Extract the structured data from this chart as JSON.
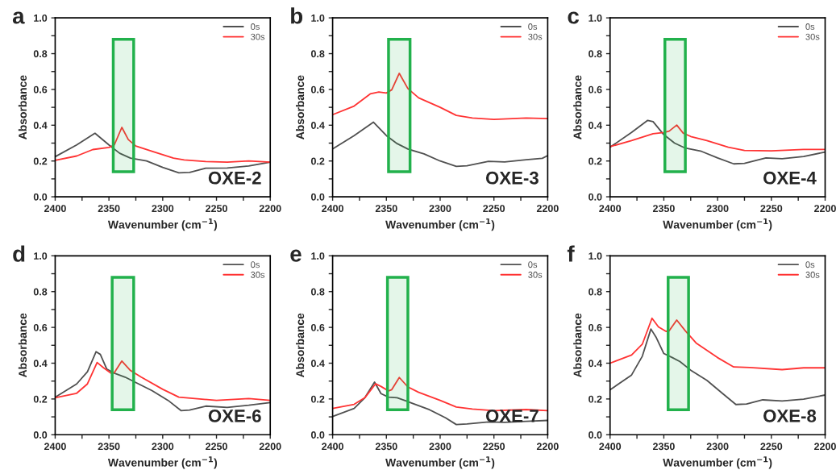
{
  "chart_data": [
    {
      "type": "line",
      "title": "a",
      "xlabel": "Wavenumber (cm$^{−1}$)",
      "ylabel": "Absorbance",
      "annotations": [
        "OXE-2"
      ],
      "xlim": [
        2400,
        2200
      ],
      "ylim": [
        0,
        1
      ],
      "xticks": [
        2400,
        {
          "value": 2375,
          "label": null
        },
        2350,
        {
          "value": 2325,
          "label": null
        },
        2300,
        {
          "value": 2275,
          "label": null
        },
        2250,
        {
          "value": 2225,
          "label": null
        },
        2200
      ],
      "yticks": [
        {
          "value": 0,
          "label": "0.0"
        },
        {
          "value": 0.1,
          "label": null
        },
        0.2,
        {
          "value": 0.3,
          "label": null
        },
        0.4,
        {
          "value": 0.5,
          "label": null
        },
        0.6,
        {
          "value": 0.7,
          "label": null
        },
        0.8,
        {
          "value": 0.9,
          "label": null
        },
        {
          "value": 1,
          "label": "1.0"
        }
      ],
      "legend": "top right",
      "grid": false,
      "bands": [
        {
          "axis": "x",
          "from": 2346,
          "to": 2327,
          "color": "#22b14c"
        }
      ],
      "series": [
        {
          "name": "0s",
          "color": "#505050",
          "x": [
            2400,
            2380,
            2363,
            2350,
            2340,
            2330,
            2315,
            2300,
            2285,
            2275,
            2260,
            2240,
            2220,
            2200
          ],
          "values": [
            0.224,
            0.29,
            0.355,
            0.29,
            0.243,
            0.216,
            0.2,
            0.164,
            0.134,
            0.136,
            0.16,
            0.161,
            0.172,
            0.194
          ]
        },
        {
          "name": "30s",
          "color": "#ff3333",
          "x": [
            2400,
            2380,
            2365,
            2350,
            2345,
            2338,
            2332,
            2325,
            2310,
            2290,
            2280,
            2260,
            2240,
            2220,
            2200
          ],
          "values": [
            0.204,
            0.228,
            0.264,
            0.276,
            0.29,
            0.388,
            0.32,
            0.284,
            0.254,
            0.216,
            0.206,
            0.197,
            0.194,
            0.2,
            0.194
          ]
        }
      ]
    },
    {
      "type": "line",
      "title": "b",
      "xlabel": "Wavenumber (cm$^{−1}$)",
      "ylabel": "Absorbance",
      "annotations": [
        "OXE-3"
      ],
      "xlim": [
        2400,
        2200
      ],
      "ylim": [
        0,
        1
      ],
      "xticks": [
        2400,
        {
          "value": 2375,
          "label": null
        },
        2350,
        {
          "value": 2325,
          "label": null
        },
        2300,
        {
          "value": 2275,
          "label": null
        },
        2250,
        {
          "value": 2225,
          "label": null
        },
        2200
      ],
      "yticks": [
        {
          "value": 0,
          "label": "0.0"
        },
        {
          "value": 0.1,
          "label": null
        },
        0.2,
        {
          "value": 0.3,
          "label": null
        },
        0.4,
        {
          "value": 0.5,
          "label": null
        },
        0.6,
        {
          "value": 0.7,
          "label": null
        },
        0.8,
        {
          "value": 0.9,
          "label": null
        },
        {
          "value": 1,
          "label": "1.0"
        }
      ],
      "legend": "top right",
      "grid": false,
      "bands": [
        {
          "axis": "x",
          "from": 2348,
          "to": 2328,
          "color": "#22b14c"
        }
      ],
      "series": [
        {
          "name": "0s",
          "color": "#505050",
          "x": [
            2400,
            2380,
            2362,
            2350,
            2340,
            2330,
            2315,
            2300,
            2285,
            2275,
            2255,
            2240,
            2220,
            2205,
            2200
          ],
          "values": [
            0.267,
            0.342,
            0.417,
            0.342,
            0.297,
            0.267,
            0.24,
            0.2,
            0.17,
            0.173,
            0.198,
            0.195,
            0.207,
            0.215,
            0.23
          ]
        },
        {
          "name": "30s",
          "color": "#ff3333",
          "x": [
            2400,
            2380,
            2365,
            2357,
            2350,
            2345,
            2338,
            2330,
            2320,
            2300,
            2285,
            2270,
            2250,
            2220,
            2200
          ],
          "values": [
            0.459,
            0.507,
            0.575,
            0.586,
            0.58,
            0.598,
            0.69,
            0.605,
            0.553,
            0.5,
            0.455,
            0.44,
            0.432,
            0.44,
            0.437
          ]
        }
      ]
    },
    {
      "type": "line",
      "title": "c",
      "xlabel": "Wavenumber (cm$^{−1}$)",
      "ylabel": "Absorbance",
      "annotations": [
        "OXE-4"
      ],
      "xlim": [
        2400,
        2200
      ],
      "ylim": [
        0,
        1
      ],
      "xticks": [
        2400,
        {
          "value": 2375,
          "label": null
        },
        2350,
        {
          "value": 2325,
          "label": null
        },
        2300,
        {
          "value": 2275,
          "label": null
        },
        2250,
        {
          "value": 2225,
          "label": null
        },
        2200
      ],
      "yticks": [
        {
          "value": 0,
          "label": "0.0"
        },
        {
          "value": 0.1,
          "label": null
        },
        0.2,
        {
          "value": 0.3,
          "label": null
        },
        0.4,
        {
          "value": 0.5,
          "label": null
        },
        0.6,
        {
          "value": 0.7,
          "label": null
        },
        0.8,
        {
          "value": 0.9,
          "label": null
        },
        {
          "value": 1,
          "label": "1.0"
        }
      ],
      "legend": "top right",
      "grid": false,
      "bands": [
        {
          "axis": "x",
          "from": 2349,
          "to": 2330,
          "color": "#22b14c"
        }
      ],
      "series": [
        {
          "name": "0s",
          "color": "#505050",
          "x": [
            2400,
            2380,
            2365,
            2360,
            2350,
            2340,
            2330,
            2315,
            2300,
            2285,
            2275,
            2255,
            2240,
            2220,
            2200
          ],
          "values": [
            0.277,
            0.36,
            0.427,
            0.42,
            0.347,
            0.3,
            0.272,
            0.254,
            0.217,
            0.184,
            0.187,
            0.217,
            0.213,
            0.225,
            0.25
          ]
        },
        {
          "name": "30s",
          "color": "#ff3333",
          "x": [
            2400,
            2380,
            2360,
            2350,
            2345,
            2338,
            2332,
            2325,
            2310,
            2290,
            2275,
            2250,
            2220,
            2200
          ],
          "values": [
            0.28,
            0.314,
            0.352,
            0.359,
            0.367,
            0.401,
            0.356,
            0.337,
            0.314,
            0.277,
            0.259,
            0.257,
            0.265,
            0.265
          ]
        }
      ]
    },
    {
      "type": "line",
      "title": "d",
      "xlabel": "Wavenumber (cm$^{−1}$)",
      "ylabel": "Absorbance",
      "annotations": [
        "OXE-6"
      ],
      "xlim": [
        2400,
        2200
      ],
      "ylim": [
        0,
        1
      ],
      "xticks": [
        2400,
        {
          "value": 2375,
          "label": null
        },
        2350,
        {
          "value": 2325,
          "label": null
        },
        2300,
        {
          "value": 2275,
          "label": null
        },
        2250,
        {
          "value": 2225,
          "label": null
        },
        2200
      ],
      "yticks": [
        {
          "value": 0,
          "label": "0.0"
        },
        {
          "value": 0.1,
          "label": null
        },
        0.2,
        {
          "value": 0.3,
          "label": null
        },
        0.4,
        {
          "value": 0.5,
          "label": null
        },
        0.6,
        {
          "value": 0.7,
          "label": null
        },
        0.8,
        {
          "value": 0.9,
          "label": null
        },
        {
          "value": 1,
          "label": "1.0"
        }
      ],
      "legend": "top right",
      "grid": false,
      "bands": [
        {
          "axis": "x",
          "from": 2347,
          "to": 2327,
          "color": "#22b14c"
        }
      ],
      "series": [
        {
          "name": "0s",
          "color": "#505050",
          "x": [
            2400,
            2380,
            2370,
            2362,
            2358,
            2352,
            2345,
            2335,
            2325,
            2310,
            2295,
            2283,
            2275,
            2260,
            2240,
            2220,
            2200
          ],
          "values": [
            0.21,
            0.284,
            0.352,
            0.464,
            0.449,
            0.367,
            0.344,
            0.322,
            0.292,
            0.247,
            0.192,
            0.135,
            0.138,
            0.16,
            0.153,
            0.165,
            0.18
          ]
        },
        {
          "name": "30s",
          "color": "#ff3333",
          "x": [
            2400,
            2380,
            2370,
            2361,
            2355,
            2348,
            2345,
            2338,
            2330,
            2320,
            2300,
            2285,
            2270,
            2250,
            2220,
            2200
          ],
          "values": [
            0.207,
            0.232,
            0.284,
            0.404,
            0.374,
            0.344,
            0.347,
            0.412,
            0.359,
            0.322,
            0.254,
            0.21,
            0.202,
            0.192,
            0.202,
            0.192
          ]
        }
      ]
    },
    {
      "type": "line",
      "title": "e",
      "xlabel": "Wavenumber (cm$^{−1}$)",
      "ylabel": "Absorbance",
      "annotations": [
        "OXE-7"
      ],
      "xlim": [
        2400,
        2200
      ],
      "ylim": [
        0,
        1
      ],
      "xticks": [
        2400,
        {
          "value": 2375,
          "label": null
        },
        2350,
        {
          "value": 2325,
          "label": null
        },
        2300,
        {
          "value": 2275,
          "label": null
        },
        2250,
        {
          "value": 2225,
          "label": null
        },
        2200
      ],
      "yticks": [
        {
          "value": 0,
          "label": "0.0"
        },
        {
          "value": 0.1,
          "label": null
        },
        0.2,
        {
          "value": 0.3,
          "label": null
        },
        0.4,
        {
          "value": 0.5,
          "label": null
        },
        0.6,
        {
          "value": 0.7,
          "label": null
        },
        0.8,
        {
          "value": 0.9,
          "label": null
        },
        {
          "value": 1,
          "label": "1.0"
        }
      ],
      "legend": "top right",
      "grid": false,
      "bands": [
        {
          "axis": "x",
          "from": 2349,
          "to": 2330,
          "color": "#22b14c"
        }
      ],
      "series": [
        {
          "name": "0s",
          "color": "#505050",
          "x": [
            2400,
            2380,
            2370,
            2361,
            2355,
            2348,
            2340,
            2330,
            2310,
            2295,
            2285,
            2275,
            2255,
            2240,
            2220,
            2200
          ],
          "values": [
            0.102,
            0.147,
            0.207,
            0.294,
            0.23,
            0.21,
            0.207,
            0.185,
            0.14,
            0.095,
            0.057,
            0.06,
            0.072,
            0.069,
            0.075,
            0.08
          ]
        },
        {
          "name": "30s",
          "color": "#ff3333",
          "x": [
            2400,
            2380,
            2370,
            2360,
            2355,
            2348,
            2345,
            2338,
            2330,
            2320,
            2300,
            2285,
            2270,
            2250,
            2220,
            2200
          ],
          "values": [
            0.147,
            0.17,
            0.207,
            0.285,
            0.27,
            0.245,
            0.252,
            0.32,
            0.267,
            0.237,
            0.192,
            0.155,
            0.144,
            0.135,
            0.141,
            0.135
          ]
        }
      ]
    },
    {
      "type": "line",
      "title": "f",
      "xlabel": "Wavenumber (cm$^{−1}$)",
      "ylabel": "Absorbance",
      "annotations": [
        "OXE-8"
      ],
      "xlim": [
        2400,
        2200
      ],
      "ylim": [
        0,
        1
      ],
      "xticks": [
        2400,
        {
          "value": 2375,
          "label": null
        },
        2350,
        {
          "value": 2325,
          "label": null
        },
        2300,
        {
          "value": 2275,
          "label": null
        },
        2250,
        {
          "value": 2225,
          "label": null
        },
        2200
      ],
      "yticks": [
        {
          "value": 0,
          "label": "0.0"
        },
        {
          "value": 0.1,
          "label": null
        },
        0.2,
        {
          "value": 0.3,
          "label": null
        },
        0.4,
        {
          "value": 0.5,
          "label": null
        },
        0.6,
        {
          "value": 0.7,
          "label": null
        },
        0.8,
        {
          "value": 0.9,
          "label": null
        },
        {
          "value": 1,
          "label": "1.0"
        }
      ],
      "legend": "top right",
      "grid": false,
      "bands": [
        {
          "axis": "x",
          "from": 2346,
          "to": 2327,
          "color": "#22b14c"
        }
      ],
      "series": [
        {
          "name": "0s",
          "color": "#505050",
          "x": [
            2400,
            2380,
            2370,
            2362,
            2357,
            2350,
            2342,
            2335,
            2325,
            2310,
            2295,
            2283,
            2273,
            2258,
            2240,
            2220,
            2200
          ],
          "values": [
            0.251,
            0.334,
            0.439,
            0.591,
            0.543,
            0.454,
            0.431,
            0.409,
            0.361,
            0.304,
            0.229,
            0.169,
            0.172,
            0.195,
            0.189,
            0.199,
            0.222
          ]
        },
        {
          "name": "30s",
          "color": "#ff3333",
          "x": [
            2400,
            2380,
            2370,
            2361,
            2355,
            2348,
            2345,
            2338,
            2330,
            2320,
            2300,
            2285,
            2270,
            2240,
            2220,
            2200
          ],
          "values": [
            0.4,
            0.446,
            0.506,
            0.651,
            0.603,
            0.578,
            0.581,
            0.641,
            0.581,
            0.513,
            0.431,
            0.379,
            0.376,
            0.364,
            0.374,
            0.374
          ]
        }
      ]
    }
  ]
}
